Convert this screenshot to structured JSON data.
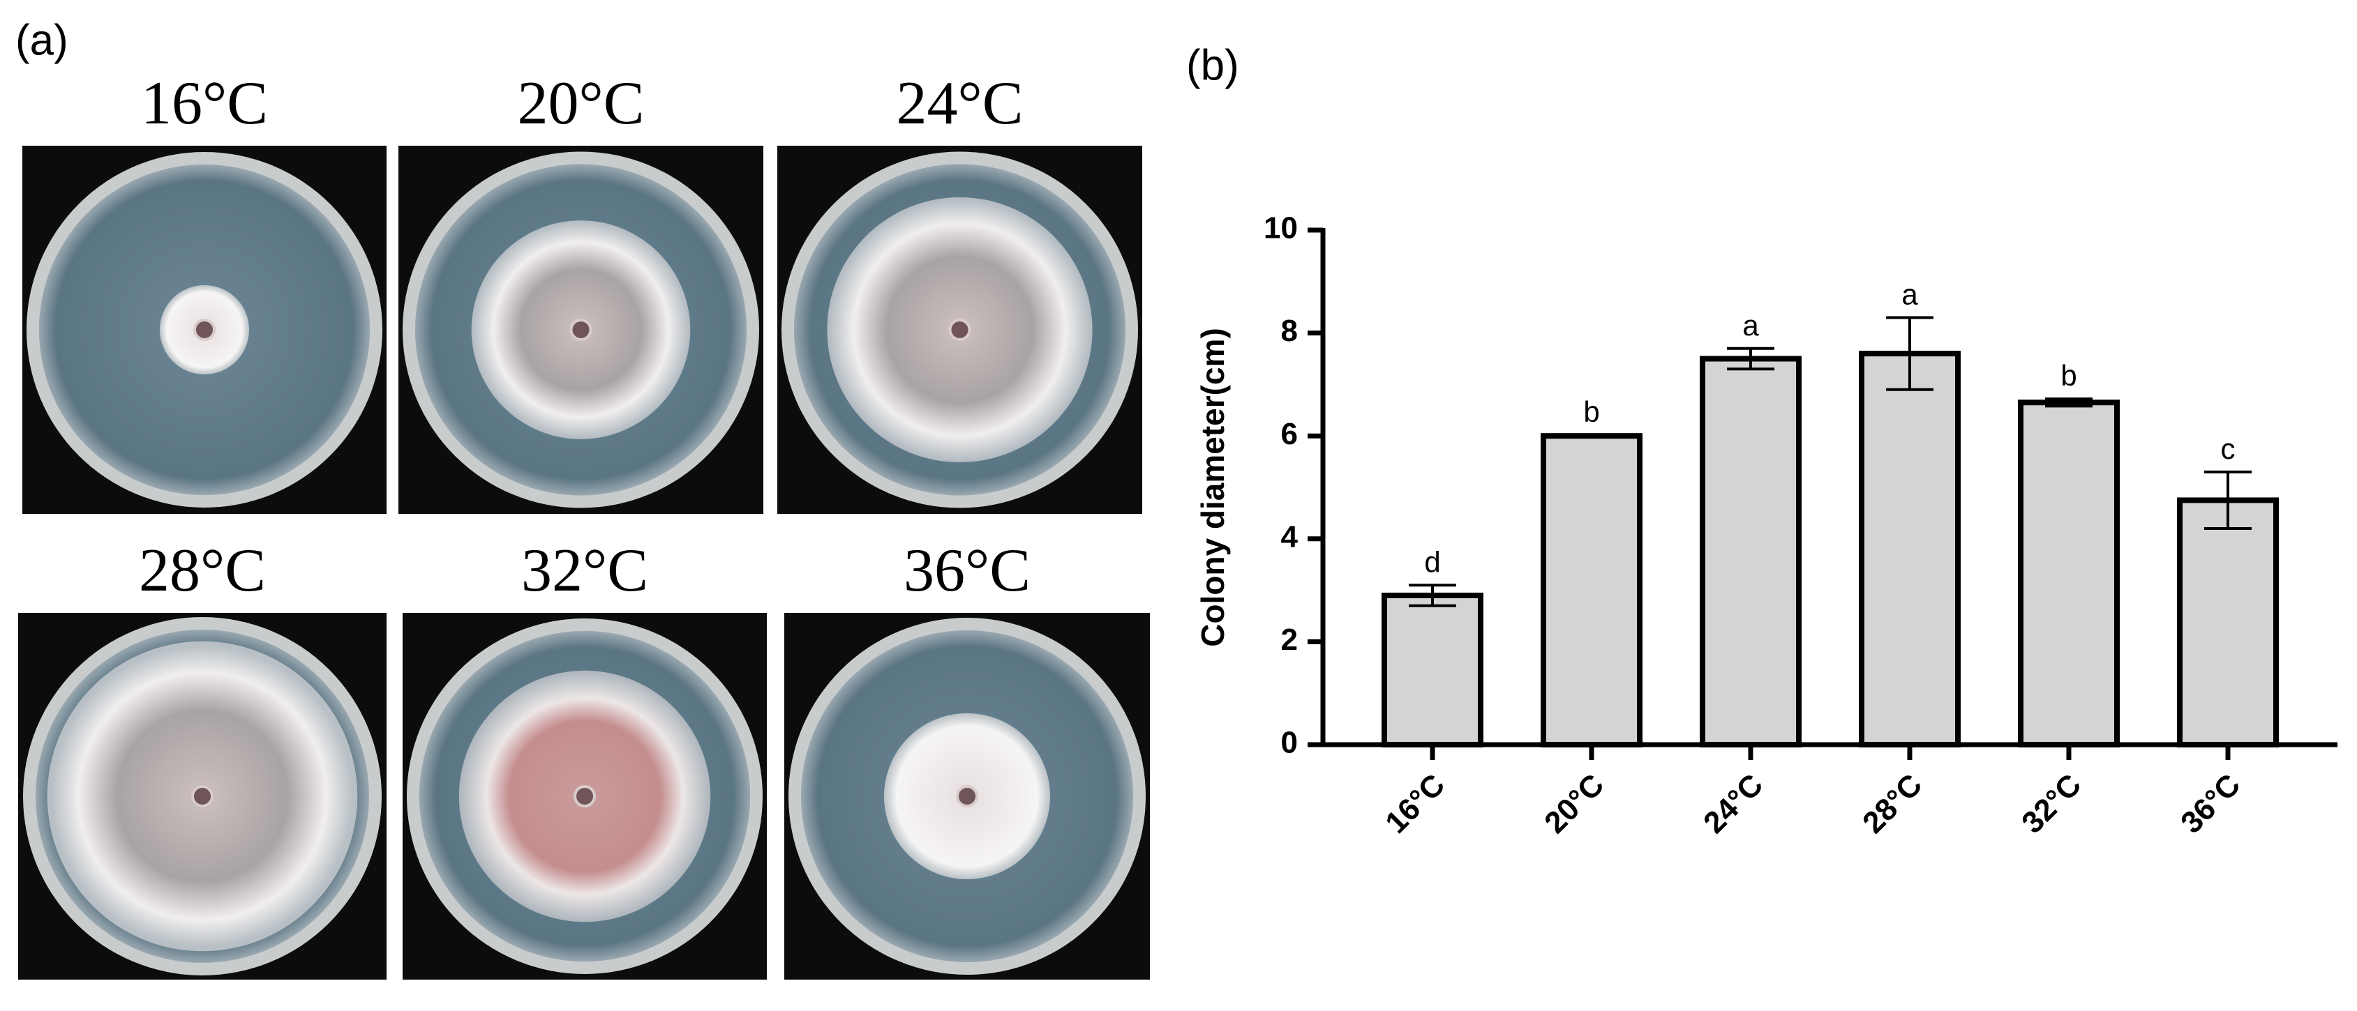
{
  "panel_a": {
    "label": "(a)",
    "plates": [
      "16°C",
      "20°C",
      "24°C",
      "28°C",
      "32°C",
      "36°C"
    ]
  },
  "chart_data": {
    "type": "bar",
    "label": "(b)",
    "y_label": "Colony diameter(cm)",
    "categories": [
      "16°C",
      "20°C",
      "24°C",
      "28°C",
      "32°C",
      "36°C"
    ],
    "values": [
      2.9,
      6.0,
      7.5,
      7.6,
      6.65,
      4.75
    ],
    "errors": [
      0.2,
      0.02,
      0.2,
      0.7,
      0.07,
      0.55
    ],
    "letters": [
      "d",
      "b",
      "a",
      "a",
      "b",
      "c"
    ],
    "color": "#d4d4d4",
    "ylim": [
      0,
      10
    ],
    "yticks": [
      0,
      2,
      4,
      6,
      8,
      10
    ]
  }
}
